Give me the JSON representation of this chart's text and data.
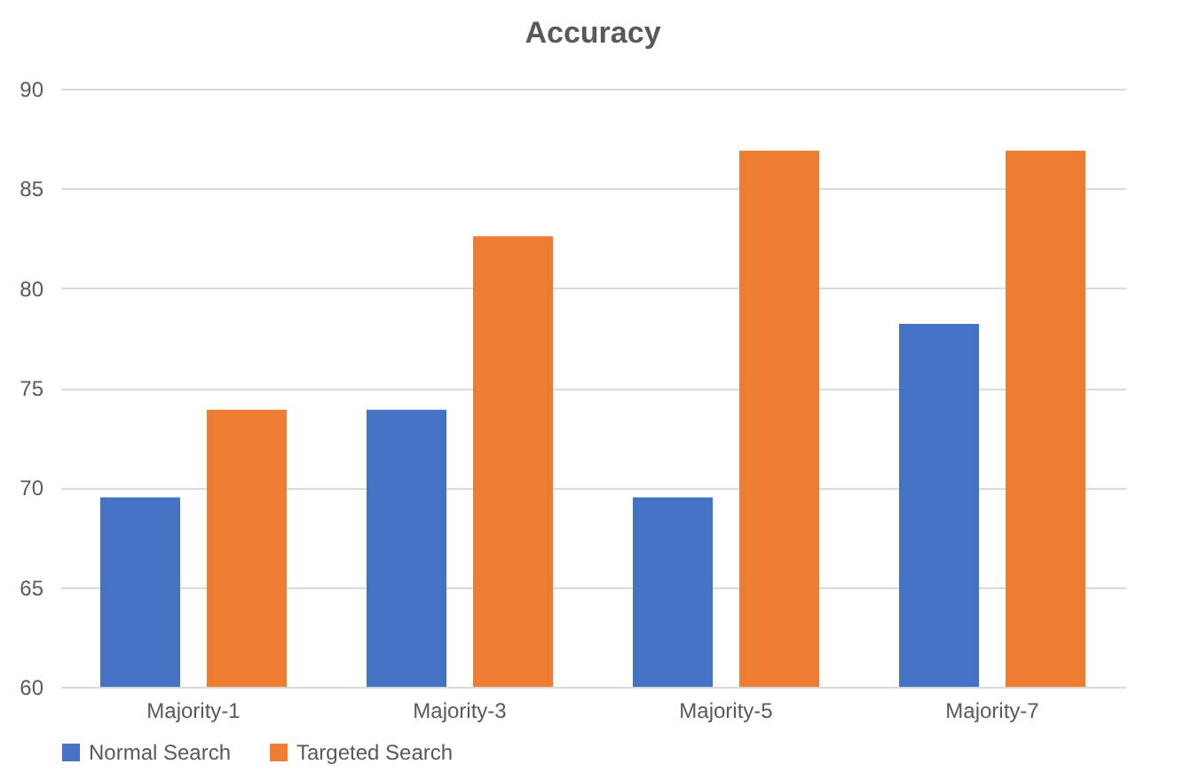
{
  "chart_data": {
    "type": "bar",
    "title": "Accuracy",
    "categories": [
      "Majority-1",
      "Majority-3",
      "Majority-5",
      "Majority-7"
    ],
    "series": [
      {
        "name": "Normal Search",
        "color": "#4472c4",
        "values": [
          69.5,
          73.9,
          69.5,
          78.2
        ]
      },
      {
        "name": "Targeted Search",
        "color": "#ed7d31",
        "values": [
          73.9,
          82.6,
          86.9,
          86.9
        ]
      }
    ],
    "ylim": [
      60,
      90
    ],
    "yticks": [
      60,
      65,
      70,
      75,
      80,
      85,
      90
    ],
    "grid": "y",
    "legend": "bottom"
  }
}
